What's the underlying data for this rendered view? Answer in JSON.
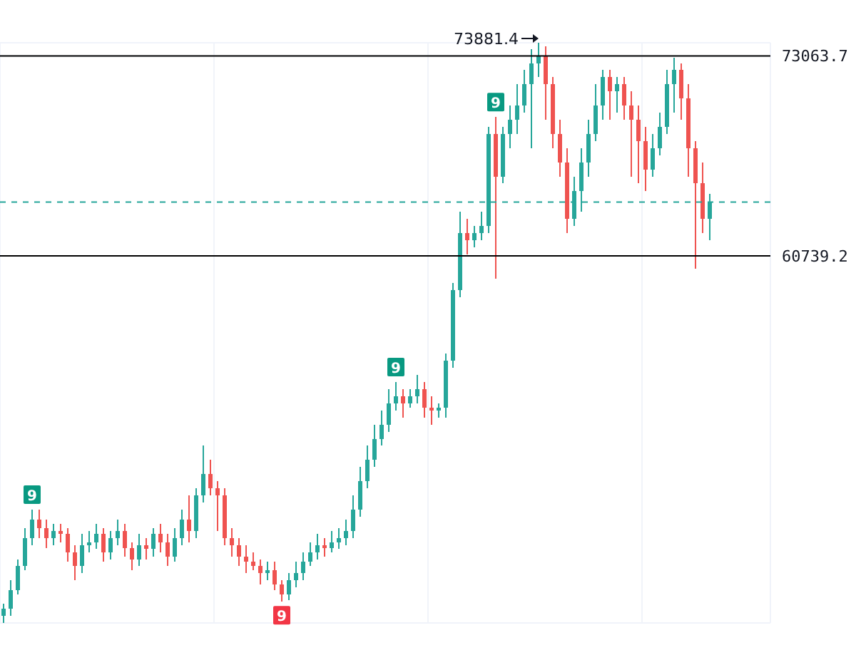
{
  "chart_data": {
    "type": "candlestick",
    "categories": [
      null,
      null,
      null,
      null,
      null,
      null,
      null,
      null,
      null,
      null,
      null,
      null,
      null,
      null,
      null,
      null,
      null,
      null,
      null,
      null,
      null,
      null,
      null,
      null,
      null,
      null,
      null,
      null,
      null,
      null,
      null,
      null,
      null,
      null,
      null,
      null,
      null,
      null,
      null,
      null,
      null,
      null,
      null,
      null,
      null,
      null,
      null,
      null,
      null,
      null,
      null,
      null,
      null,
      null,
      null,
      null,
      null,
      null,
      null,
      null,
      null,
      null,
      null,
      null,
      null,
      null,
      null,
      null,
      null,
      null,
      null,
      null,
      null,
      null,
      null,
      null,
      null,
      null,
      null,
      null,
      null,
      null,
      null,
      null,
      null,
      null,
      null,
      null,
      null,
      null,
      null,
      null,
      null,
      null,
      null,
      null,
      null,
      null,
      null,
      null
    ],
    "ohlc": [
      [
        38540,
        39300,
        38100,
        38980
      ],
      [
        38980,
        40720,
        38540,
        40110
      ],
      [
        40110,
        42030,
        39850,
        41600
      ],
      [
        41600,
        43960,
        41340,
        43350
      ],
      [
        43350,
        45090,
        42910,
        44480
      ],
      [
        44480,
        45090,
        43350,
        43960
      ],
      [
        43960,
        44480,
        42730,
        43350
      ],
      [
        43350,
        44220,
        42910,
        43780
      ],
      [
        43780,
        44220,
        43080,
        43610
      ],
      [
        43610,
        43960,
        41860,
        42470
      ],
      [
        42470,
        42910,
        40720,
        41600
      ],
      [
        41600,
        43610,
        41160,
        42910
      ],
      [
        42910,
        43780,
        42470,
        43080
      ],
      [
        43080,
        44220,
        42650,
        43610
      ],
      [
        43610,
        43960,
        41860,
        42470
      ],
      [
        42470,
        43780,
        42030,
        43350
      ],
      [
        43350,
        44480,
        42910,
        43780
      ],
      [
        43780,
        44220,
        42210,
        42730
      ],
      [
        42730,
        43080,
        41340,
        42030
      ],
      [
        42030,
        43610,
        41600,
        42910
      ],
      [
        42910,
        43350,
        42030,
        42650
      ],
      [
        42650,
        43960,
        42210,
        43610
      ],
      [
        43610,
        44220,
        42470,
        43080
      ],
      [
        43080,
        43610,
        41600,
        42210
      ],
      [
        42210,
        43960,
        41860,
        43350
      ],
      [
        43350,
        45090,
        42910,
        44480
      ],
      [
        44480,
        45970,
        43080,
        43780
      ],
      [
        43780,
        46400,
        43350,
        45970
      ],
      [
        45970,
        49030,
        45530,
        47280
      ],
      [
        47280,
        48150,
        45970,
        46400
      ],
      [
        46400,
        46840,
        43780,
        45970
      ],
      [
        45970,
        46400,
        42910,
        43350
      ],
      [
        43350,
        43960,
        42210,
        42910
      ],
      [
        42910,
        43350,
        41600,
        42210
      ],
      [
        42210,
        42910,
        41160,
        41860
      ],
      [
        41860,
        42470,
        41340,
        41600
      ],
      [
        41600,
        42030,
        40460,
        41160
      ],
      [
        41160,
        41860,
        40720,
        41340
      ],
      [
        41340,
        41860,
        40110,
        40460
      ],
      [
        40460,
        40720,
        39410,
        39850
      ],
      [
        39850,
        41160,
        39500,
        40720
      ],
      [
        40720,
        41860,
        40290,
        41160
      ],
      [
        41160,
        42470,
        40720,
        41860
      ],
      [
        41860,
        43080,
        41600,
        42470
      ],
      [
        42470,
        43610,
        42030,
        42910
      ],
      [
        42910,
        43350,
        42210,
        42730
      ],
      [
        42730,
        43780,
        42470,
        43080
      ],
      [
        43080,
        43960,
        42650,
        43350
      ],
      [
        43350,
        44480,
        42910,
        43780
      ],
      [
        43780,
        45970,
        43350,
        45090
      ],
      [
        45090,
        47720,
        44660,
        46840
      ],
      [
        46840,
        49030,
        46400,
        48150
      ],
      [
        48150,
        50340,
        47720,
        49460
      ],
      [
        49460,
        51210,
        49030,
        50340
      ],
      [
        50340,
        52520,
        49900,
        51650
      ],
      [
        51650,
        52960,
        51210,
        52090
      ],
      [
        52090,
        52520,
        50770,
        51650
      ],
      [
        51650,
        52520,
        51390,
        52090
      ],
      [
        52090,
        53400,
        51650,
        52520
      ],
      [
        52520,
        52960,
        50770,
        51390
      ],
      [
        51390,
        52090,
        50340,
        51210
      ],
      [
        51210,
        51650,
        50770,
        51390
      ],
      [
        51390,
        54710,
        50770,
        54270
      ],
      [
        54270,
        59080,
        53830,
        58640
      ],
      [
        58640,
        63450,
        58200,
        62140
      ],
      [
        62140,
        63010,
        60830,
        61700
      ],
      [
        61700,
        62570,
        61260,
        62140
      ],
      [
        62140,
        63450,
        61700,
        62570
      ],
      [
        62570,
        68690,
        62140,
        68250
      ],
      [
        68250,
        69300,
        59340,
        65630
      ],
      [
        65630,
        68690,
        65200,
        68250
      ],
      [
        68250,
        70000,
        67380,
        69130
      ],
      [
        69130,
        71310,
        68250,
        70000
      ],
      [
        70000,
        72190,
        69570,
        71310
      ],
      [
        71310,
        73500,
        67380,
        72620
      ],
      [
        72620,
        73881.4,
        71750,
        73060
      ],
      [
        73060,
        73670,
        69130,
        71310
      ],
      [
        71310,
        71750,
        67380,
        68250
      ],
      [
        68250,
        69130,
        65630,
        66510
      ],
      [
        66510,
        67380,
        62140,
        63010
      ],
      [
        63010,
        65630,
        62570,
        64760
      ],
      [
        64760,
        67380,
        63450,
        66510
      ],
      [
        66510,
        69130,
        65630,
        68250
      ],
      [
        68250,
        71310,
        67820,
        70000
      ],
      [
        70000,
        72190,
        69130,
        71750
      ],
      [
        71750,
        72190,
        69130,
        70880
      ],
      [
        70880,
        71750,
        69570,
        71310
      ],
      [
        71310,
        71750,
        69130,
        70000
      ],
      [
        70000,
        70880,
        65630,
        69130
      ],
      [
        69130,
        70000,
        65200,
        67820
      ],
      [
        67820,
        68690,
        64760,
        66070
      ],
      [
        66070,
        68250,
        65630,
        67380
      ],
      [
        67380,
        69570,
        66940,
        68690
      ],
      [
        68690,
        72190,
        68250,
        71310
      ],
      [
        71310,
        72970,
        69570,
        72190
      ],
      [
        72190,
        72620,
        69130,
        70440
      ],
      [
        70440,
        71310,
        65630,
        67380
      ],
      [
        67380,
        67820,
        59950,
        65200
      ],
      [
        65200,
        66510,
        62140,
        63010
      ],
      [
        63010,
        64580,
        61700,
        64060
      ]
    ],
    "ylim": [
      38100,
      73881.4
    ],
    "yticks": [
      60739.2,
      73063.7
    ],
    "ref_lines": [
      {
        "axis": "y",
        "value": 73063.7,
        "color": "#000000"
      },
      {
        "axis": "y",
        "value": 60739.2,
        "color": "#000000"
      },
      {
        "axis": "y",
        "value": 64060,
        "color": "#26a69a",
        "line_style": "dashed"
      }
    ],
    "annotations": [
      "73881.4",
      {
        "text": "9",
        "y": 45090
      },
      {
        "text": "9",
        "y": 39410
      },
      {
        "text": "9",
        "y": 52960
      },
      {
        "text": "9",
        "y": 69300
      }
    ],
    "grid": true,
    "tick_labels": "y"
  }
}
